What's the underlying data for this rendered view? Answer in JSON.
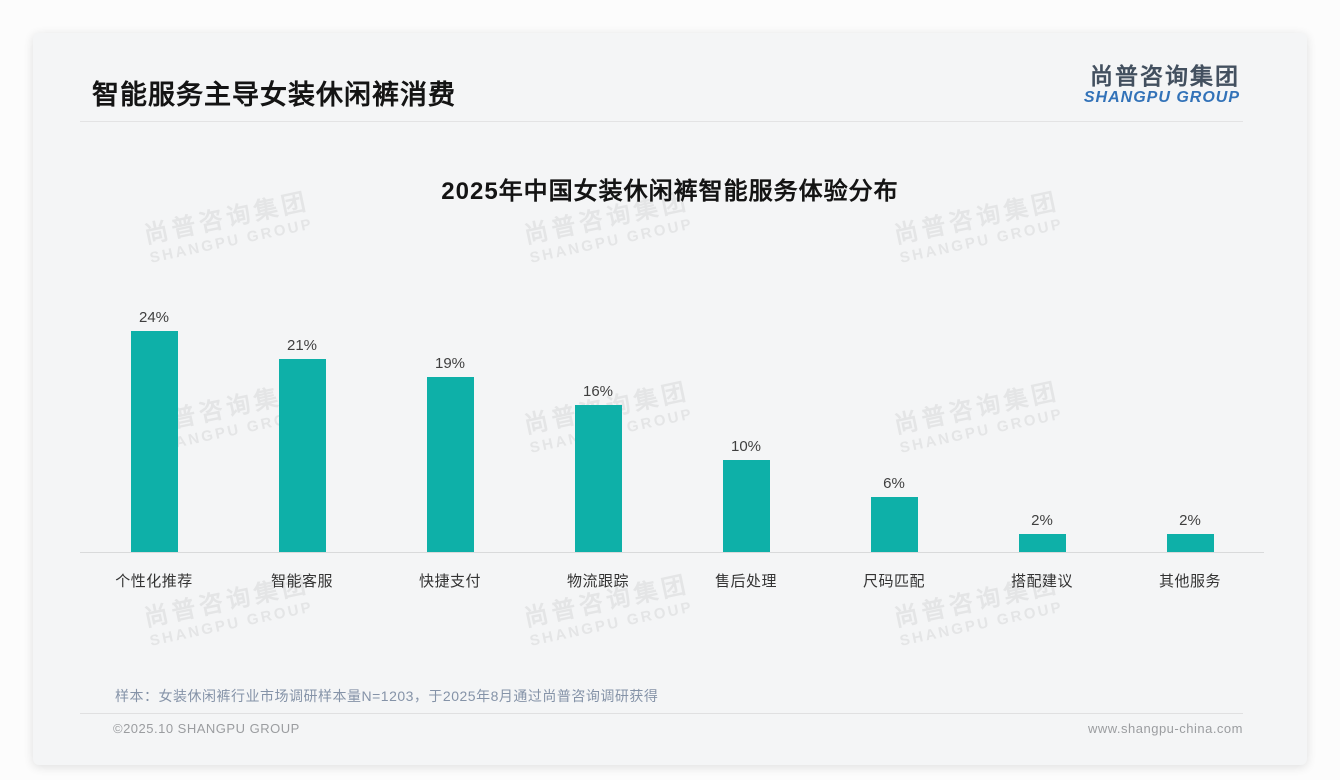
{
  "page": {
    "title": "智能服务主导女装休闲裤消费"
  },
  "logo": {
    "cn": "尚普咨询集团",
    "en": "SHANGPU GROUP"
  },
  "watermark": {
    "cn": "尚普咨询集团",
    "en": "SHANGPU GROUP"
  },
  "chart_data": {
    "type": "bar",
    "title": "2025年中国女装休闲裤智能服务体验分布",
    "categories": [
      "个性化推荐",
      "智能客服",
      "快捷支付",
      "物流跟踪",
      "售后处理",
      "尺码匹配",
      "搭配建议",
      "其他服务"
    ],
    "values": [
      24,
      21,
      19,
      16,
      10,
      6,
      2,
      2
    ],
    "unit": "%",
    "value_label_format": "value + %",
    "bar_color": "#0eb0a8",
    "xlabel": "",
    "ylabel": "",
    "ylim": [
      0,
      25
    ],
    "grid": false,
    "legend": "none",
    "value_labels_position": "above bars"
  },
  "note": {
    "text": "样本：女装休闲裤行业市场调研样本量N=1203，于2025年8月通过尚普咨询调研获得"
  },
  "footer": {
    "left": "©2025.10 SHANGPU GROUP",
    "right": "www.shangpu-china.com"
  }
}
